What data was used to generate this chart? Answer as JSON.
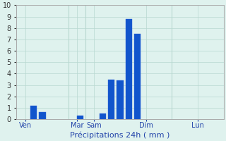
{
  "background_color": "#dff2ee",
  "grid_color": "#b8d8d0",
  "bar_color": "#1155cc",
  "ylim": [
    0,
    10
  ],
  "yticks": [
    0,
    1,
    2,
    3,
    4,
    5,
    6,
    7,
    8,
    9,
    10
  ],
  "xlabel": "Précipitations 24h ( mm )",
  "day_labels": [
    "Ven",
    "Mar",
    "Sam",
    "Dim",
    "Lun"
  ],
  "day_positions": [
    0.5,
    3.5,
    4.5,
    7.5,
    10.5
  ],
  "bars": [
    {
      "x": 1.0,
      "height": 1.2
    },
    {
      "x": 1.5,
      "height": 0.6
    },
    {
      "x": 3.7,
      "height": 0.3
    },
    {
      "x": 5.0,
      "height": 0.5
    },
    {
      "x": 5.5,
      "height": 3.5
    },
    {
      "x": 6.0,
      "height": 3.4
    },
    {
      "x": 6.5,
      "height": 8.8
    },
    {
      "x": 7.0,
      "height": 7.5
    }
  ],
  "bar_width": 0.38,
  "xlim": [
    0,
    12
  ],
  "vline_positions": [
    0.0,
    3.0,
    4.0,
    9.0,
    12.0
  ],
  "ytick_fontsize": 7,
  "xtick_fontsize": 7,
  "xlabel_fontsize": 8,
  "spine_color": "#aaaaaa"
}
